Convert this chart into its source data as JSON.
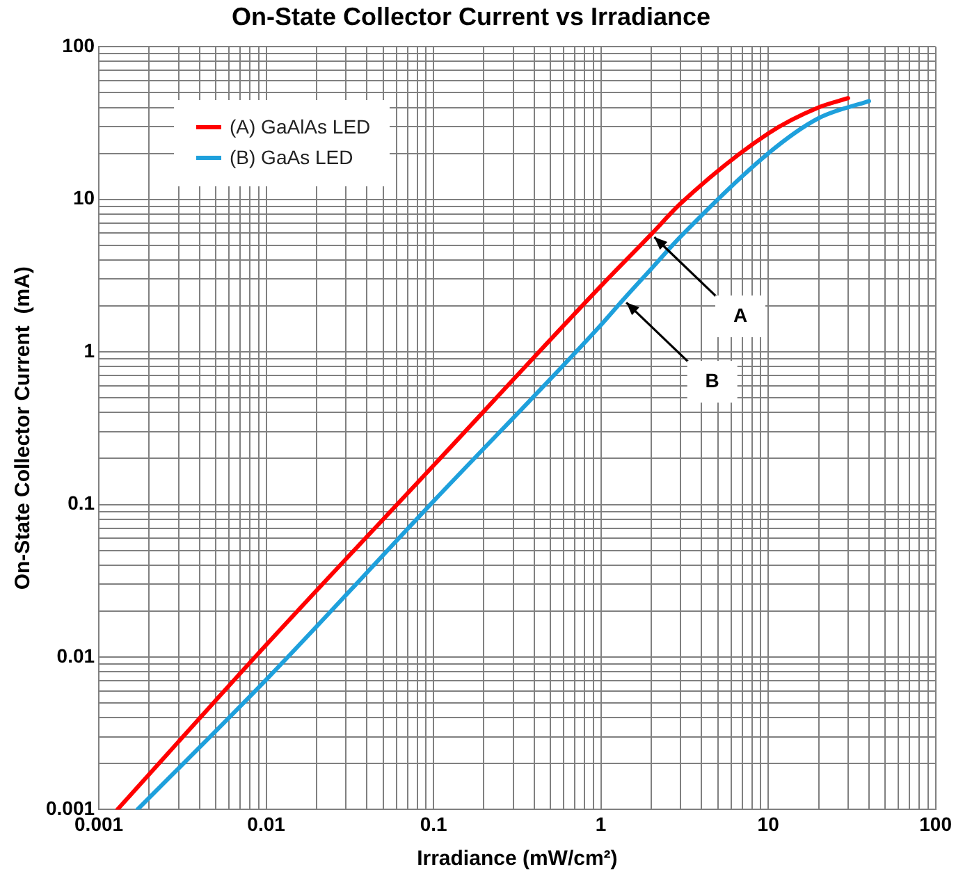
{
  "chart_data": {
    "type": "line",
    "title": "On-State Collector Current vs Irradiance",
    "xlabel": "Irradiance (mW/cm²)",
    "ylabel": "On-State Collector Current  (mA)",
    "log": "xy",
    "grid": true,
    "legend": "top left",
    "marker": "none",
    "xlim": [
      0.001,
      100
    ],
    "ylim": [
      0.001,
      100
    ],
    "xticks": [
      0.001,
      {
        "value": 0.002,
        "label": null
      },
      {
        "value": 0.003,
        "label": null
      },
      {
        "value": 0.004,
        "label": null
      },
      {
        "value": 0.005,
        "label": null
      },
      {
        "value": 0.006,
        "label": null
      },
      {
        "value": 0.007,
        "label": null
      },
      {
        "value": 0.008,
        "label": null
      },
      {
        "value": 0.009,
        "label": null
      },
      0.01,
      {
        "value": 0.02,
        "label": null
      },
      {
        "value": 0.03,
        "label": null
      },
      {
        "value": 0.04,
        "label": null
      },
      {
        "value": 0.05,
        "label": null
      },
      {
        "value": 0.06,
        "label": null
      },
      {
        "value": 0.07,
        "label": null
      },
      {
        "value": 0.08,
        "label": null
      },
      {
        "value": 0.09,
        "label": null
      },
      0.1,
      {
        "value": 0.2,
        "label": null
      },
      {
        "value": 0.3,
        "label": null
      },
      {
        "value": 0.4,
        "label": null
      },
      {
        "value": 0.5,
        "label": null
      },
      {
        "value": 0.6,
        "label": null
      },
      {
        "value": 0.7,
        "label": null
      },
      {
        "value": 0.8,
        "label": null
      },
      {
        "value": 0.9,
        "label": null
      },
      1,
      {
        "value": 2,
        "label": null
      },
      {
        "value": 3,
        "label": null
      },
      {
        "value": 4,
        "label": null
      },
      {
        "value": 5,
        "label": null
      },
      {
        "value": 6,
        "label": null
      },
      {
        "value": 7,
        "label": null
      },
      {
        "value": 8,
        "label": null
      },
      {
        "value": 9,
        "label": null
      },
      10,
      {
        "value": 20,
        "label": null
      },
      {
        "value": 30,
        "label": null
      },
      {
        "value": 40,
        "label": null
      },
      {
        "value": 50,
        "label": null
      },
      {
        "value": 60,
        "label": null
      },
      {
        "value": 70,
        "label": null
      },
      {
        "value": 80,
        "label": null
      },
      {
        "value": 90,
        "label": null
      },
      100
    ],
    "yticks": [
      0.001,
      {
        "value": 0.002,
        "label": null
      },
      {
        "value": 0.003,
        "label": null
      },
      {
        "value": 0.004,
        "label": null
      },
      {
        "value": 0.005,
        "label": null
      },
      {
        "value": 0.006,
        "label": null
      },
      {
        "value": 0.007,
        "label": null
      },
      {
        "value": 0.008,
        "label": null
      },
      {
        "value": 0.009,
        "label": null
      },
      0.01,
      {
        "value": 0.02,
        "label": null
      },
      {
        "value": 0.03,
        "label": null
      },
      {
        "value": 0.04,
        "label": null
      },
      {
        "value": 0.05,
        "label": null
      },
      {
        "value": 0.06,
        "label": null
      },
      {
        "value": 0.07,
        "label": null
      },
      {
        "value": 0.08,
        "label": null
      },
      {
        "value": 0.09,
        "label": null
      },
      0.1,
      {
        "value": 0.2,
        "label": null
      },
      {
        "value": 0.3,
        "label": null
      },
      {
        "value": 0.4,
        "label": null
      },
      {
        "value": 0.5,
        "label": null
      },
      {
        "value": 0.6,
        "label": null
      },
      {
        "value": 0.7,
        "label": null
      },
      {
        "value": 0.8,
        "label": null
      },
      {
        "value": 0.9,
        "label": null
      },
      1,
      {
        "value": 2,
        "label": null
      },
      {
        "value": 3,
        "label": null
      },
      {
        "value": 4,
        "label": null
      },
      {
        "value": 5,
        "label": null
      },
      {
        "value": 6,
        "label": null
      },
      {
        "value": 7,
        "label": null
      },
      {
        "value": 8,
        "label": null
      },
      {
        "value": 9,
        "label": null
      },
      10,
      {
        "value": 20,
        "label": null
      },
      {
        "value": 30,
        "label": null
      },
      {
        "value": 40,
        "label": null
      },
      {
        "value": 50,
        "label": null
      },
      {
        "value": 60,
        "label": null
      },
      {
        "value": 70,
        "label": null
      },
      {
        "value": 80,
        "label": null
      },
      {
        "value": 90,
        "label": null
      },
      100
    ],
    "series": [
      {
        "name": "(A)  GaAlAs LED",
        "color": "#ff0000",
        "x": [
          0.00129,
          0.01,
          0.1,
          1,
          2,
          3,
          10,
          20,
          30
        ],
        "values": [
          0.001,
          0.012,
          0.18,
          2.7,
          5.9,
          9.4,
          27,
          40,
          46
        ]
      },
      {
        "name": "(B)  GaAs  LED",
        "color": "#1ea0dc",
        "x": [
          0.0017,
          0.01,
          0.1,
          1,
          1.36,
          2,
          3,
          10,
          20,
          40
        ],
        "values": [
          0.001,
          0.0071,
          0.105,
          1.5,
          2.2,
          3.5,
          5.7,
          20,
          34,
          44
        ]
      }
    ],
    "annotations": [
      {
        "text": "A",
        "x": 2,
        "y": 5.9
      },
      {
        "text": "B",
        "x": 1.36,
        "y": 2.2
      }
    ]
  }
}
